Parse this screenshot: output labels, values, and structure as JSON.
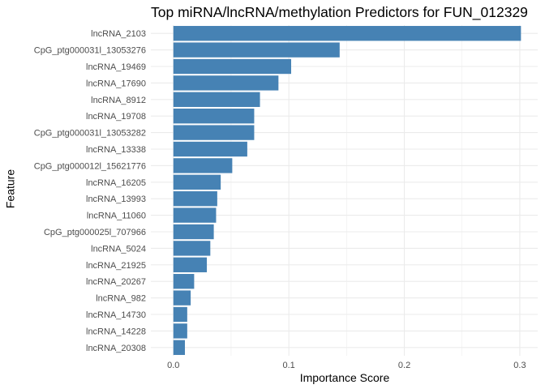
{
  "chart_data": {
    "type": "bar",
    "orientation": "horizontal",
    "title": "Top miRNA/lncRNA/methylation Predictors for FUN_012329",
    "xlabel": "Importance Score",
    "ylabel": "Feature",
    "xlim": [
      -0.0195,
      0.3155
    ],
    "xticks": [
      0.0,
      0.1,
      0.2,
      0.3
    ],
    "xtick_labels": [
      "0.0",
      "0.1",
      "0.2",
      "0.3"
    ],
    "grid": true,
    "bar_color": "#4682B4",
    "categories": [
      "lncRNA_2103",
      "CpG_ptg000031l_13053276",
      "lncRNA_19469",
      "lncRNA_17690",
      "lncRNA_8912",
      "lncRNA_19708",
      "CpG_ptg000031l_13053282",
      "lncRNA_13338",
      "CpG_ptg000012l_15621776",
      "lncRNA_16205",
      "lncRNA_13993",
      "lncRNA_11060",
      "CpG_ptg000025l_707966",
      "lncRNA_5024",
      "lncRNA_21925",
      "lncRNA_20267",
      "lncRNA_982",
      "lncRNA_14730",
      "lncRNA_14228",
      "lncRNA_20308"
    ],
    "values": [
      0.301,
      0.144,
      0.102,
      0.091,
      0.075,
      0.07,
      0.07,
      0.064,
      0.051,
      0.041,
      0.038,
      0.037,
      0.035,
      0.032,
      0.029,
      0.018,
      0.015,
      0.012,
      0.012,
      0.01
    ]
  }
}
